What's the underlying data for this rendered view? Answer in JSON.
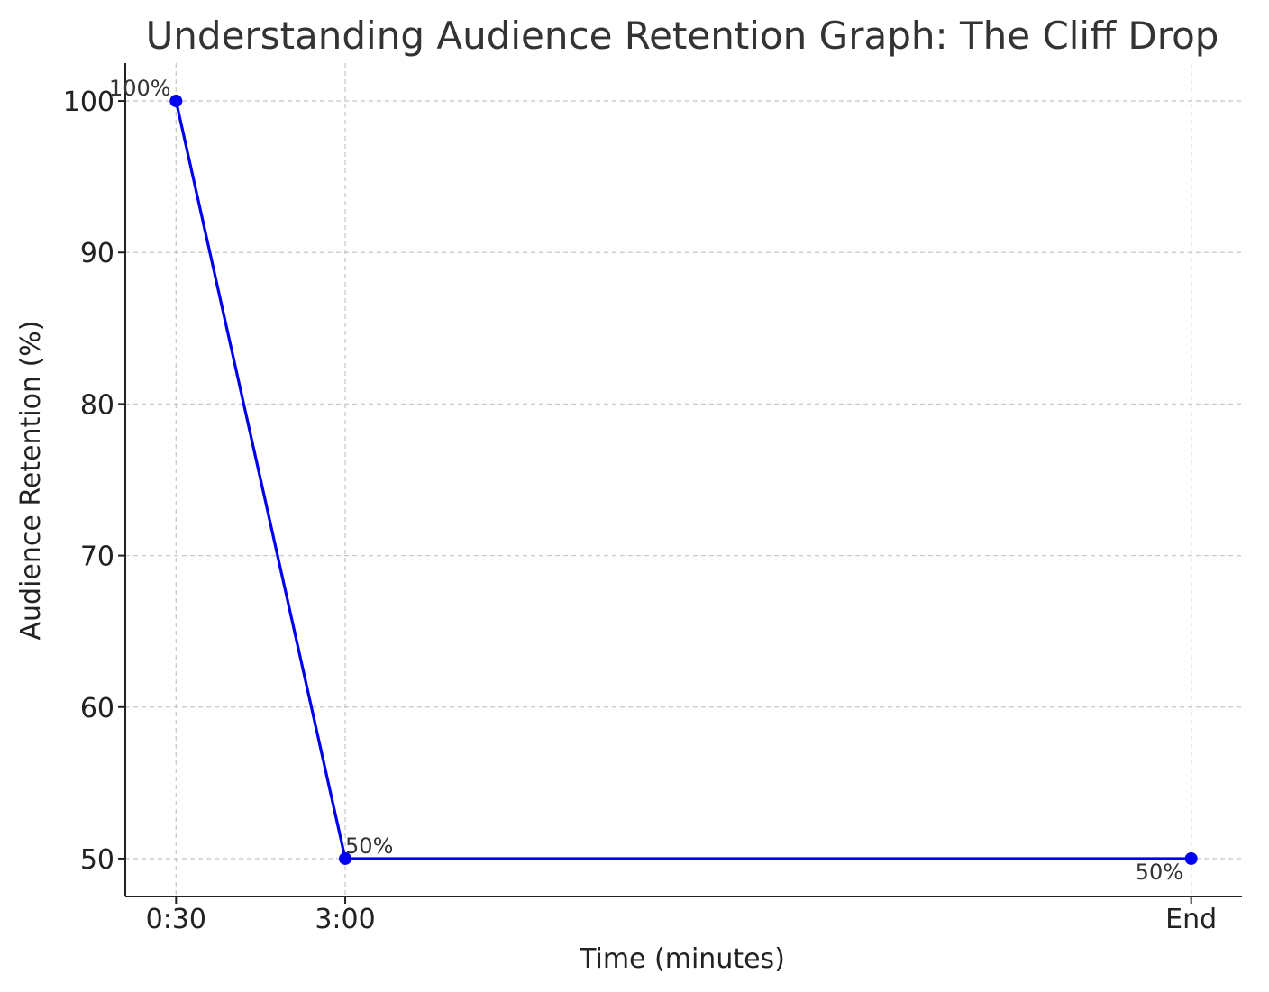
{
  "chart_data": {
    "type": "line",
    "title": "Understanding Audience Retention Graph: The Cliff Drop",
    "xlabel": "Time (minutes)",
    "ylabel": "Audience Retention (%)",
    "categories": [
      "0:30",
      "3:00",
      "End"
    ],
    "x": [
      0.5,
      3,
      15.5
    ],
    "series": [
      {
        "values": [
          100,
          50,
          50
        ],
        "color": "#0000ee"
      }
    ],
    "data_labels": [
      "100%",
      "50%",
      "50%"
    ],
    "yticks": [
      50,
      60,
      70,
      80,
      90,
      100
    ],
    "ylim": [
      47.5,
      102.5
    ],
    "xlim": [
      -0.25,
      16.25
    ],
    "grid": true,
    "legend": "none"
  }
}
